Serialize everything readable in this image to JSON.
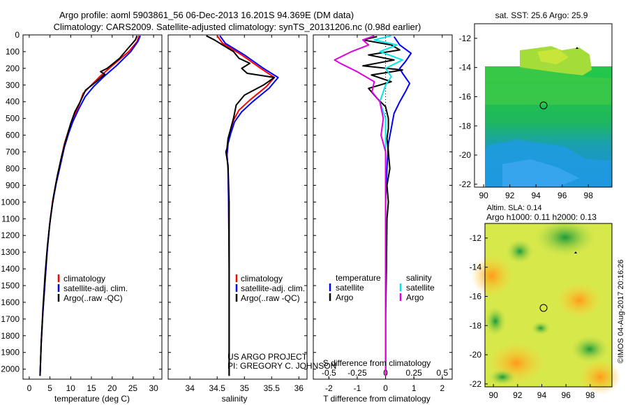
{
  "header": {
    "title_line1": "Argo profile: aoml 5903861_56 06-Dec-2013 16.201S 94.369E (DM data)",
    "title_line2": "Climatology: CARS2009. Satellite-adjusted climatology: synTS_20131206.nc (0.98d earlier)"
  },
  "colors": {
    "climatology": "#ff0000",
    "satellite": "#0000ff",
    "argo": "#000000",
    "sal_satellite": "#00e5e5",
    "sal_argo": "#e000e0"
  },
  "depth_axis": {
    "ticks": [
      0,
      100,
      200,
      300,
      400,
      500,
      600,
      700,
      800,
      900,
      1000,
      1100,
      1200,
      1300,
      1400,
      1500,
      1600,
      1700,
      1800,
      1900,
      2000
    ],
    "range": [
      0,
      2060
    ]
  },
  "chart_data": [
    {
      "id": "temperature",
      "type": "line",
      "xlabel": "temperature (deg C)",
      "ylabel": "depth (dbar)",
      "xlim": [
        -1.5,
        32
      ],
      "ylim": [
        2060,
        0
      ],
      "xticks": [
        0,
        5,
        10,
        15,
        20,
        25,
        30
      ],
      "legend": [
        "climatology",
        "satellite-adj. clim.",
        "Argo(..raw -QC)"
      ],
      "series": [
        {
          "name": "climatology",
          "color_key": "climatology",
          "points": [
            [
              26.5,
              5
            ],
            [
              26,
              40
            ],
            [
              24,
              100
            ],
            [
              20,
              185
            ],
            [
              17,
              250
            ],
            [
              15,
              300
            ],
            [
              13,
              350
            ],
            [
              12,
              420
            ],
            [
              10.5,
              500
            ],
            [
              9.5,
              570
            ],
            [
              8.5,
              650
            ],
            [
              7.5,
              760
            ],
            [
              6.5,
              880
            ],
            [
              5.6,
              1000
            ],
            [
              4.9,
              1140
            ],
            [
              4.3,
              1300
            ],
            [
              3.8,
              1480
            ],
            [
              3.3,
              1660
            ],
            [
              2.9,
              1840
            ],
            [
              2.6,
              2040
            ]
          ]
        },
        {
          "name": "satellite-adj. clim.",
          "color_key": "satellite",
          "points": [
            [
              26.8,
              5
            ],
            [
              26.2,
              40
            ],
            [
              24.5,
              100
            ],
            [
              21,
              185
            ],
            [
              18,
              250
            ],
            [
              15.5,
              310
            ],
            [
              13.5,
              370
            ],
            [
              12,
              440
            ],
            [
              10.5,
              520
            ],
            [
              9.5,
              590
            ],
            [
              8.5,
              670
            ],
            [
              7.5,
              780
            ],
            [
              6.5,
              890
            ],
            [
              5.6,
              1010
            ],
            [
              4.9,
              1140
            ],
            [
              4.3,
              1300
            ],
            [
              3.8,
              1480
            ],
            [
              3.3,
              1660
            ],
            [
              2.9,
              1840
            ],
            [
              2.6,
              2040
            ]
          ]
        },
        {
          "name": "Argo(..raw -QC)",
          "color_key": "argo",
          "points": [
            [
              26,
              5
            ],
            [
              25.6,
              30
            ],
            [
              23.5,
              90
            ],
            [
              21.8,
              140
            ],
            [
              18.8,
              200
            ],
            [
              17.2,
              220
            ],
            [
              18.2,
              235
            ],
            [
              16.2,
              280
            ],
            [
              13.6,
              330
            ],
            [
              12.3,
              400
            ],
            [
              11,
              460
            ],
            [
              10,
              530
            ],
            [
              9.3,
              590
            ],
            [
              8.6,
              650
            ],
            [
              7.8,
              730
            ],
            [
              6.8,
              840
            ],
            [
              5.9,
              960
            ],
            [
              5.1,
              1100
            ],
            [
              4.4,
              1260
            ],
            [
              3.8,
              1440
            ],
            [
              3.3,
              1640
            ],
            [
              2.9,
              1840
            ],
            [
              2.6,
              2040
            ]
          ]
        }
      ]
    },
    {
      "id": "salinity",
      "type": "line",
      "xlabel": "salinity",
      "xlim": [
        33.6,
        36.15
      ],
      "ylim": [
        2060,
        0
      ],
      "xticks": [
        34,
        34.5,
        35,
        35.5,
        36
      ],
      "xtick_labels": [
        "34",
        "34.5",
        "35",
        "35.5",
        "36"
      ],
      "legend": [
        "climatology",
        "satellite-adj. clim.",
        "Argo(..raw -QC)"
      ],
      "series": [
        {
          "name": "climatology",
          "color_key": "climatology",
          "points": [
            [
              34.5,
              5
            ],
            [
              34.6,
              50
            ],
            [
              34.95,
              120
            ],
            [
              35.3,
              200
            ],
            [
              35.55,
              255
            ],
            [
              35.4,
              310
            ],
            [
              35.1,
              390
            ],
            [
              34.9,
              450
            ],
            [
              34.8,
              510
            ],
            [
              34.75,
              570
            ],
            [
              34.7,
              650
            ],
            [
              34.68,
              720
            ],
            [
              34.7,
              800
            ],
            [
              34.71,
              1000
            ],
            [
              34.72,
              1400
            ],
            [
              34.72,
              2040
            ]
          ]
        },
        {
          "name": "satellite-adj. clim.",
          "color_key": "satellite",
          "points": [
            [
              34.55,
              5
            ],
            [
              34.65,
              50
            ],
            [
              35,
              120
            ],
            [
              35.35,
              200
            ],
            [
              35.62,
              255
            ],
            [
              35.45,
              320
            ],
            [
              35.15,
              400
            ],
            [
              34.95,
              460
            ],
            [
              34.82,
              520
            ],
            [
              34.75,
              590
            ],
            [
              34.7,
              650
            ],
            [
              34.68,
              720
            ],
            [
              34.7,
              800
            ],
            [
              34.71,
              1000
            ],
            [
              34.72,
              1400
            ],
            [
              34.72,
              2040
            ]
          ]
        },
        {
          "name": "Argo(..raw -QC)",
          "color_key": "argo",
          "points": [
            [
              34.3,
              5
            ],
            [
              34.45,
              30
            ],
            [
              34.6,
              60
            ],
            [
              34.8,
              100
            ],
            [
              34.9,
              140
            ],
            [
              35.1,
              170
            ],
            [
              34.95,
              200
            ],
            [
              35.05,
              230
            ],
            [
              35.25,
              240
            ],
            [
              35.55,
              255
            ],
            [
              35.35,
              300
            ],
            [
              35.0,
              360
            ],
            [
              34.85,
              420
            ],
            [
              34.8,
              500
            ],
            [
              34.75,
              560
            ],
            [
              34.7,
              620
            ],
            [
              34.68,
              680
            ],
            [
              34.66,
              700
            ],
            [
              34.7,
              780
            ],
            [
              34.72,
              1000
            ],
            [
              34.72,
              1400
            ],
            [
              34.72,
              2040
            ]
          ]
        }
      ]
    },
    {
      "id": "difference",
      "type": "line",
      "xlabel": "T difference from climatology",
      "xlabel_top": "S difference from climatology",
      "xlim": [
        -2.55,
        2.35
      ],
      "ylim": [
        2060,
        0
      ],
      "xticks": [
        -2,
        -1,
        0,
        1,
        2
      ],
      "s_ticks": [
        -0.5,
        -0.25,
        0,
        0.25,
        0.5
      ],
      "s_tick_labels": [
        "-0.5",
        "-0.25",
        "0",
        "0.25",
        "0.5"
      ],
      "s_scale": 4,
      "legend_temperature": {
        "heading": "temperature",
        "items": [
          "satellite",
          "Argo"
        ]
      },
      "legend_salinity": {
        "heading": "salinity",
        "items": [
          "satellite",
          "Argo"
        ]
      },
      "series": [
        {
          "name": "T satellite",
          "color_key": "satellite",
          "points": [
            [
              0.3,
              10
            ],
            [
              0.5,
              60
            ],
            [
              0.9,
              110
            ],
            [
              0.7,
              160
            ],
            [
              0.5,
              200
            ],
            [
              0.6,
              230
            ],
            [
              0.85,
              290
            ],
            [
              0.7,
              340
            ],
            [
              0.5,
              400
            ],
            [
              0.3,
              470
            ],
            [
              0.2,
              560
            ],
            [
              0.1,
              650
            ],
            [
              0.05,
              800
            ],
            [
              0,
              1000
            ],
            [
              0,
              1400
            ],
            [
              0,
              2040
            ]
          ]
        },
        {
          "name": "T Argo",
          "color_key": "argo",
          "points": [
            [
              -0.3,
              10
            ],
            [
              -0.8,
              30
            ],
            [
              0.2,
              60
            ],
            [
              0.5,
              90
            ],
            [
              -0.6,
              120
            ],
            [
              0.3,
              150
            ],
            [
              -0.8,
              185
            ],
            [
              0.6,
              210
            ],
            [
              -0.5,
              240
            ],
            [
              0.2,
              280
            ],
            [
              -0.6,
              320
            ],
            [
              -0.3,
              380
            ],
            [
              0,
              430
            ],
            [
              0.1,
              500
            ],
            [
              0.1,
              560
            ],
            [
              0.05,
              620
            ],
            [
              0.1,
              700
            ],
            [
              0.15,
              800
            ],
            [
              0.05,
              900
            ],
            [
              0.1,
              1000
            ],
            [
              0.05,
              1100
            ],
            [
              0.03,
              1400
            ],
            [
              0,
              1700
            ],
            [
              0,
              2040
            ]
          ]
        },
        {
          "name": "S satellite",
          "color_key": "sal_satellite",
          "points": [
            [
              0.05,
              5
            ],
            [
              -0.1,
              30
            ],
            [
              0.1,
              60
            ],
            [
              -0.05,
              100
            ],
            [
              0.15,
              150
            ],
            [
              0,
              200
            ],
            [
              0.05,
              250
            ],
            [
              0.0,
              300
            ],
            [
              -0.05,
              400
            ],
            [
              0,
              500
            ],
            [
              0,
              650
            ],
            [
              0,
              900
            ],
            [
              0,
              1400
            ],
            [
              0,
              2040
            ]
          ]
        },
        {
          "name": "S Argo",
          "color_key": "sal_argo",
          "points": [
            [
              -0.1,
              5
            ],
            [
              -0.2,
              30
            ],
            [
              -0.15,
              60
            ],
            [
              -0.3,
              100
            ],
            [
              -0.45,
              150
            ],
            [
              -0.4,
              170
            ],
            [
              -0.25,
              220
            ],
            [
              -0.1,
              280
            ],
            [
              -0.12,
              340
            ],
            [
              -0.05,
              400
            ],
            [
              -0.02,
              500
            ],
            [
              -0.04,
              600
            ],
            [
              0,
              700
            ],
            [
              0,
              900
            ],
            [
              0,
              2040
            ]
          ]
        }
      ]
    }
  ],
  "sst_panel": {
    "title": "sat. SST: 25.6  Argo: 25.9",
    "y_ticks": [
      "-12",
      "-14",
      "-16",
      "-18",
      "-20",
      "-22"
    ],
    "x_ticks": [
      "90",
      "92",
      "94",
      "96",
      "98"
    ],
    "argo_position": {
      "lon": 94.4,
      "lat": -16.2
    }
  },
  "sla_panel": {
    "title_line1": "Altim. SLA: 0.14",
    "title_line2": "Argo h1000: 0.11 h2000: 0.13",
    "y_ticks": [
      "-12",
      "-14",
      "-16",
      "-18",
      "-20",
      "-22"
    ],
    "x_ticks": [
      "90",
      "92",
      "94",
      "96",
      "98"
    ],
    "argo_position": {
      "lon": 94.4,
      "lat": -16.2
    }
  },
  "footer": {
    "project": "US ARGO PROJECT",
    "pi": "PI: GREGORY C. JOHNSON",
    "imos_stamp": "©IMOS 04-Aug-2017 20:16:26"
  }
}
